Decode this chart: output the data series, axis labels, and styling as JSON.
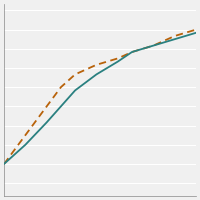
{
  "title": "",
  "background_color": "#f0f0f0",
  "plot_bg_color": "#f0f0f0",
  "grid_color": "#ffffff",
  "years": [
    1992,
    1993,
    1995,
    1998,
    2000,
    2002,
    2005,
    2008,
    2010,
    2013,
    2016,
    2019
  ],
  "line1": {
    "values": [
      30,
      32,
      36,
      43,
      48,
      53,
      58,
      62,
      65,
      67,
      69,
      71
    ],
    "color": "#2a8080",
    "linestyle": "solid",
    "linewidth": 1.3
  },
  "line2": {
    "values": [
      30,
      33,
      39,
      48,
      54,
      58,
      61,
      63,
      65,
      67,
      70,
      72
    ],
    "color": "#b8620a",
    "linestyle": "dashed",
    "linewidth": 1.3
  },
  "xlim": [
    1992,
    2019
  ],
  "ylim": [
    20,
    80
  ],
  "n_gridlines": 10,
  "figsize": [
    2.0,
    2.0
  ],
  "dpi": 100
}
